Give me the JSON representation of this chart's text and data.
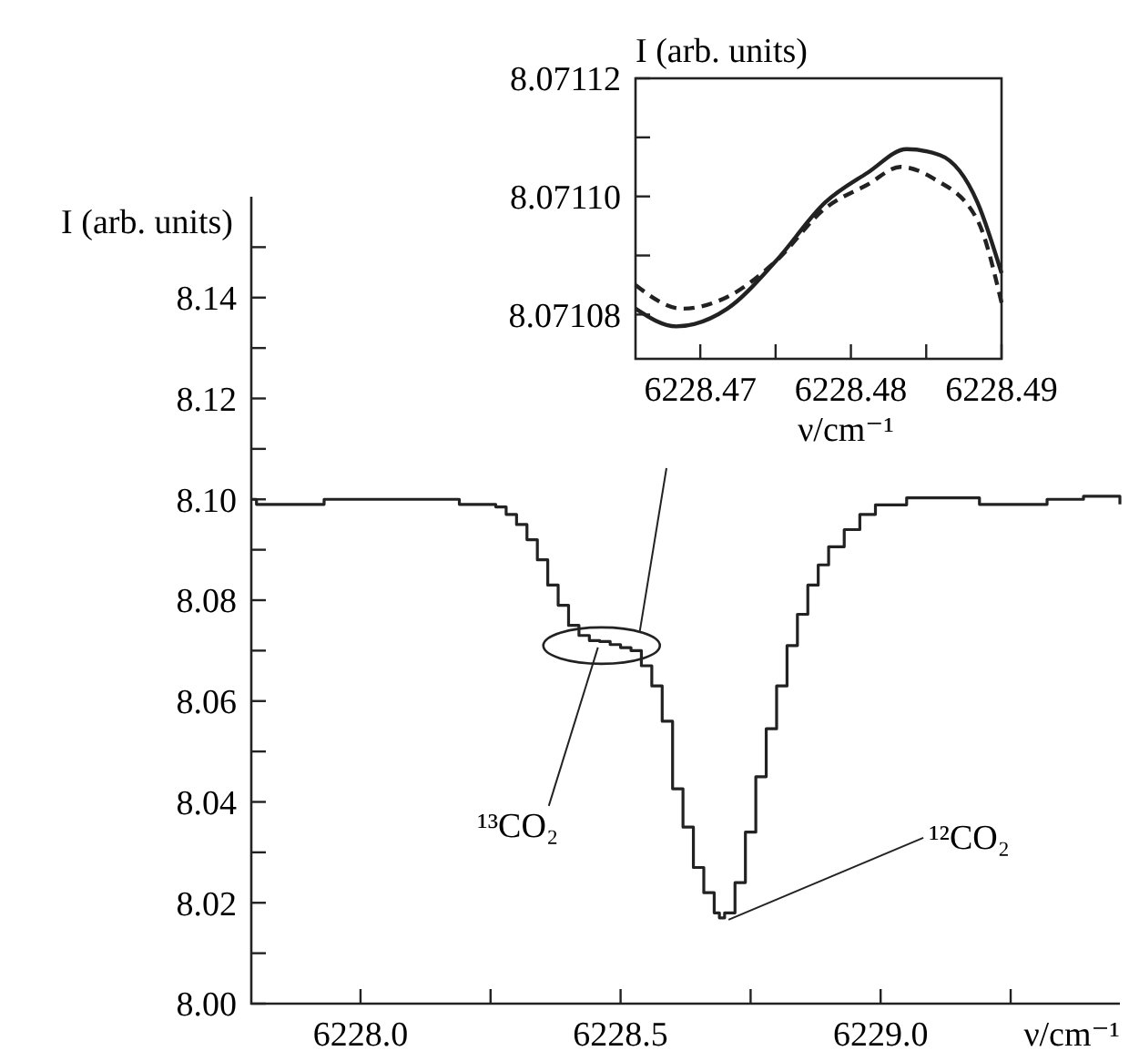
{
  "chart_data": [
    {
      "type": "step",
      "xlabel": "ν/cm⁻¹",
      "ylabel": "I (arb. units)",
      "xlim": [
        6227.79,
        6229.46
      ],
      "ylim": [
        8.0,
        8.16
      ],
      "xticks": [
        {
          "value": 6228,
          "label": "6228.0"
        },
        {
          "value": 6228.25,
          "label": null
        },
        {
          "value": 6228.5,
          "label": "6228.5"
        },
        {
          "value": 6228.75,
          "label": null
        },
        {
          "value": 6229,
          "label": "6229.0"
        },
        {
          "value": 6229.25,
          "label": null
        }
      ],
      "yticks": [
        {
          "value": 8.0,
          "label": "8.00"
        },
        {
          "value": 8.01,
          "label": null
        },
        8.02,
        {
          "value": 8.03,
          "label": null
        },
        8.04,
        {
          "value": 8.05,
          "label": null
        },
        8.06,
        {
          "value": 8.07,
          "label": null
        },
        8.08,
        {
          "value": 8.09,
          "label": null
        },
        {
          "value": 8.1,
          "label": "8.10"
        },
        {
          "value": 8.11,
          "label": null
        },
        8.12,
        {
          "value": 8.13,
          "label": null
        },
        8.14,
        {
          "value": 8.15,
          "label": null
        }
      ],
      "annotations": [
        {
          "text": "¹³CO₂",
          "x": 6228.46,
          "y": 8.071
        },
        {
          "text": "¹²CO₂",
          "x": 6228.69,
          "y": 8.017
        }
      ],
      "series": [
        {
          "color": "#222222",
          "x": [
            6227.79,
            6227.8,
            6227.93,
            6228.19,
            6228.24,
            6228.26,
            6228.28,
            6228.3,
            6228.32,
            6228.34,
            6228.36,
            6228.38,
            6228.4,
            6228.42,
            6228.44,
            6228.46,
            6228.48,
            6228.5,
            6228.52,
            6228.54,
            6228.56,
            6228.58,
            6228.6,
            6228.62,
            6228.64,
            6228.66,
            6228.68,
            6228.69,
            6228.7,
            6228.72,
            6228.74,
            6228.76,
            6228.78,
            6228.8,
            6228.82,
            6228.84,
            6228.86,
            6228.88,
            6228.9,
            6228.93,
            6228.96,
            6228.99,
            6229.05,
            6229.19,
            6229.32,
            6229.39,
            6229.46
          ],
          "values": [
            8.1,
            8.099,
            8.1,
            8.099,
            8.099,
            8.0985,
            8.097,
            8.095,
            8.092,
            8.088,
            8.083,
            8.079,
            8.075,
            8.073,
            8.072,
            8.0718,
            8.0712,
            8.0706,
            8.07,
            8.067,
            8.063,
            8.056,
            8.0426,
            8.035,
            8.027,
            8.022,
            8.018,
            8.017,
            8.018,
            8.024,
            8.034,
            8.045,
            8.0545,
            8.063,
            8.071,
            8.0772,
            8.083,
            8.087,
            8.0906,
            8.094,
            8.097,
            8.0989,
            8.1003,
            8.099,
            8.1,
            8.1006,
            8.099
          ]
        }
      ]
    },
    {
      "type": "line",
      "xlabel": "ν/cm⁻¹",
      "ylabel": "I (arb. units)",
      "xlim": [
        6228.4657,
        6228.49
      ],
      "ylim": [
        8.0710725,
        8.07112
      ],
      "xticks": [
        6228.47,
        {
          "value": 6228.475,
          "label": null
        },
        6228.48,
        {
          "value": 6228.485,
          "label": null
        },
        6228.49
      ],
      "yticks": [
        8.07108,
        {
          "value": 8.07109,
          "label": null
        },
        {
          "value": 8.0711,
          "label": "8.07110"
        },
        {
          "value": 8.07111,
          "label": null
        },
        8.07112
      ],
      "series": [
        {
          "color": "#222222",
          "line_style": "solid",
          "x": [
            6228.4657,
            6228.4684,
            6228.4718,
            6228.475,
            6228.4783,
            6228.4811,
            6228.4837,
            6228.4859,
            6228.4884,
            6228.49
          ],
          "values": [
            8.071081,
            8.071078,
            8.071081,
            8.071089,
            8.071099,
            8.071104,
            8.071108,
            8.071107,
            8.071099,
            8.071087
          ]
        },
        {
          "color": "#222222",
          "line_style": "dashed",
          "x": [
            6228.4657,
            6228.4688,
            6228.4718,
            6228.475,
            6228.4783,
            6228.4811,
            6228.4833,
            6228.4855,
            6228.4884,
            6228.49
          ],
          "values": [
            8.071085,
            8.071081,
            8.071083,
            8.071089,
            8.071098,
            8.071102,
            8.071105,
            8.071103,
            8.071096,
            8.071082
          ]
        }
      ]
    }
  ]
}
